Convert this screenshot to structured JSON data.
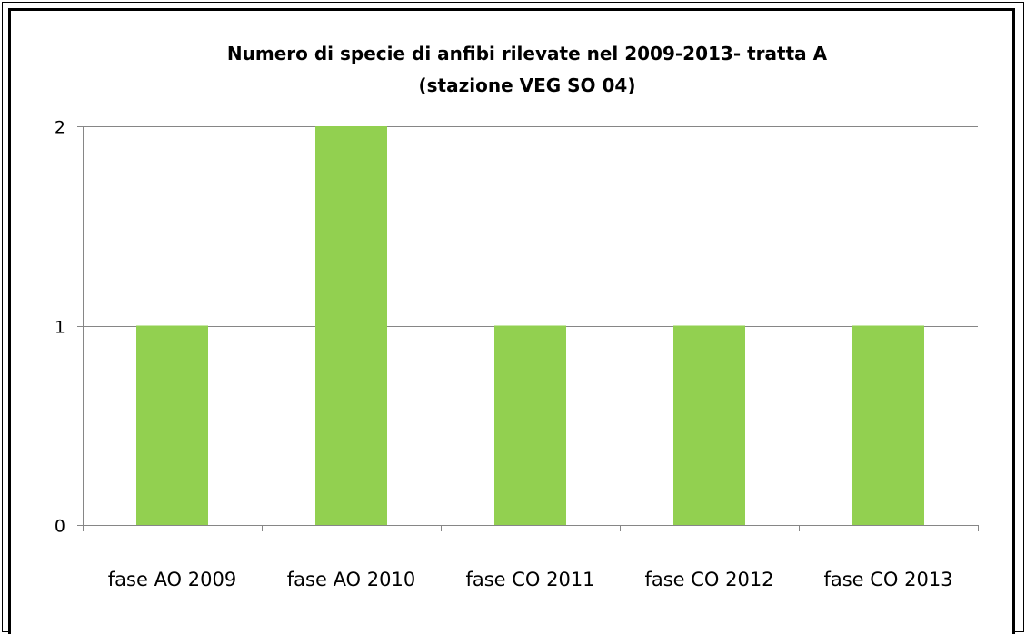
{
  "chart_data": {
    "type": "bar",
    "title": [
      "Numero di specie di anfibi rilevate nel  2009-2013- tratta A",
      "(stazione VEG SO 04)"
    ],
    "categories": [
      "fase AO 2009",
      "fase AO 2010",
      "fase CO 2011",
      "fase CO 2012",
      "fase CO 2013"
    ],
    "values": [
      1,
      2,
      1,
      1,
      1
    ],
    "ylim": [
      0,
      2
    ],
    "yticks": [
      "0",
      "1",
      "2"
    ],
    "xlabel": "",
    "ylabel": "",
    "grid": true,
    "legend": "none",
    "bar_color": "#92D050",
    "grid_color": "#868686",
    "axis_color": "#868686"
  }
}
